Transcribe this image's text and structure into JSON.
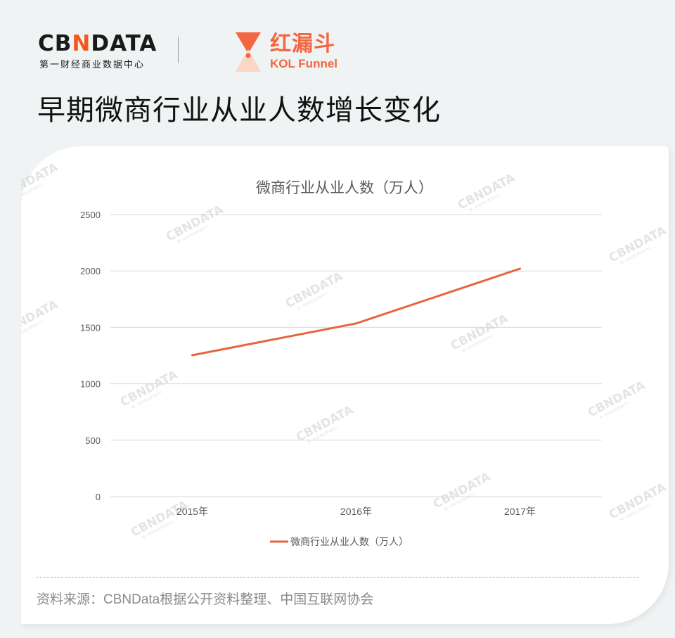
{
  "header": {
    "cbn_logo": {
      "word_left": "CB",
      "word_n": "N",
      "word_right": "DATA",
      "subtitle": "第一财经商业数据中心"
    },
    "kol_logo": {
      "cn": "红漏斗",
      "en": "KOL Funnel"
    },
    "title": "早期微商行业从业人数增长变化"
  },
  "colors": {
    "background": "#f0f3f4",
    "card": "#ffffff",
    "series_line": "#e8643a",
    "brand_orange": "#f36640",
    "gridline": "#d9d9d9",
    "axis_text": "#595959"
  },
  "chart_data": {
    "type": "line",
    "title": "微商行业从业人数（万人）",
    "categories": [
      "2015年",
      "2016年",
      "2017年"
    ],
    "series": [
      {
        "name": "微商行业从业人数（万人）",
        "values": [
          1253,
          1535,
          2020
        ],
        "color": "#e8643a"
      }
    ],
    "xlabel": "",
    "ylabel": "",
    "ylim": [
      0,
      2500
    ],
    "yticks": [
      "0",
      "500",
      "1000",
      "1500",
      "2000",
      "2500"
    ],
    "grid": true,
    "legend_position": "bottom"
  },
  "watermark": {
    "text": "CBNDATA",
    "sub": "第一财经商业数据中心"
  },
  "footer": {
    "source": "资料来源：CBNData根据公开资料整理、中国互联网协会"
  }
}
